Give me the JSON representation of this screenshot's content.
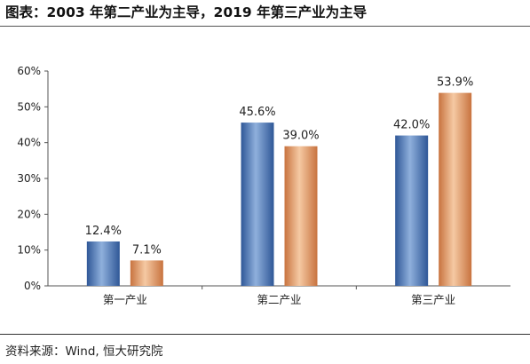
{
  "header": {
    "title": "图表：2003 年第二产业为主导，2019 年第三产业为主导"
  },
  "footer": {
    "source": "资料来源：Wind, 恒大研究院"
  },
  "chart_data": {
    "type": "bar",
    "title": "图表：2003 年第二产业为主导，2019 年第三产业为主导",
    "categories": [
      "第一产业",
      "第二产业",
      "第三产业"
    ],
    "series": [
      {
        "values": [
          12.4,
          45.6,
          42.0
        ],
        "labels": [
          "12.4%",
          "45.6%",
          "42.0%"
        ],
        "color": "#4f78b6"
      },
      {
        "values": [
          7.1,
          39.0,
          53.9
        ],
        "labels": [
          "7.1%",
          "39.0%",
          "53.9%"
        ],
        "color": "#e09a68"
      }
    ],
    "ylim": [
      0,
      60
    ],
    "yticks": [
      0,
      10,
      20,
      30,
      40,
      50,
      60
    ],
    "ytick_labels": [
      "0%",
      "10%",
      "20%",
      "30%",
      "40%",
      "50%",
      "60%"
    ],
    "xlabel": "",
    "ylabel": "",
    "grid": false,
    "legend": "none"
  }
}
